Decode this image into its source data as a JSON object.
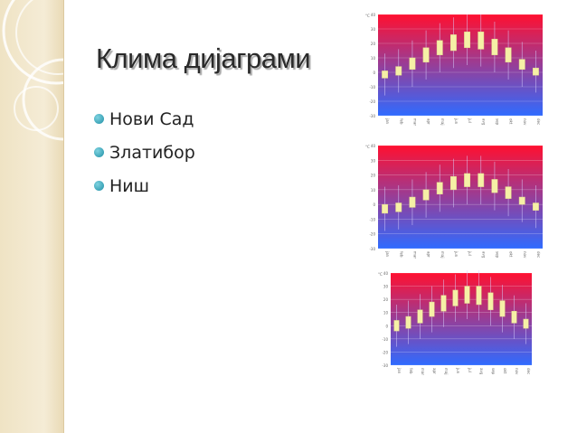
{
  "slide": {
    "title": "Клима дијаграми",
    "bullets": [
      {
        "label": "Нови Сад"
      },
      {
        "label": "Златибор"
      },
      {
        "label": "Ниш"
      }
    ]
  },
  "colors": {
    "sidebar": "#efe3c4",
    "chart_top": "#ff1030",
    "chart_bottom": "#2f6bff",
    "bar_fill": "#f6f0a6",
    "bullet": "#2a98ac"
  },
  "chart_data": [
    {
      "type": "bar",
      "title": "",
      "ylabel": "°C",
      "ylim": [
        -30,
        40
      ],
      "y_ticks": [
        "40",
        "30",
        "20",
        "10",
        "0",
        "-10",
        "-20",
        "-30"
      ],
      "categories": [
        "jan",
        "feb",
        "mar",
        "apr",
        "maj",
        "jun",
        "jul",
        "avg",
        "sep",
        "okt",
        "nov",
        "dec"
      ],
      "series": [
        {
          "low": [
            -4,
            -2,
            2,
            7,
            12,
            15,
            17,
            16,
            12,
            7,
            2,
            -2
          ]
        },
        {
          "high": [
            1,
            4,
            10,
            17,
            22,
            26,
            28,
            28,
            23,
            17,
            9,
            3
          ]
        }
      ]
    },
    {
      "type": "bar",
      "title": "",
      "ylabel": "°C",
      "ylim": [
        -30,
        40
      ],
      "y_ticks": [
        "40",
        "30",
        "20",
        "10",
        "0",
        "-10",
        "-20",
        "-30"
      ],
      "categories": [
        "jan",
        "feb",
        "mar",
        "apr",
        "maj",
        "jun",
        "jul",
        "avg",
        "sep",
        "okt",
        "nov",
        "dec"
      ],
      "series": [
        {
          "low": [
            -6,
            -5,
            -2,
            3,
            7,
            10,
            12,
            12,
            8,
            4,
            0,
            -4
          ]
        },
        {
          "high": [
            0,
            1,
            5,
            10,
            15,
            19,
            21,
            21,
            17,
            12,
            5,
            1
          ]
        }
      ]
    },
    {
      "type": "bar",
      "title": "",
      "ylabel": "°C",
      "ylim": [
        -30,
        40
      ],
      "y_ticks": [
        "40",
        "30",
        "20",
        "10",
        "0",
        "-10",
        "-20",
        "-30"
      ],
      "categories": [
        "jan",
        "feb",
        "mar",
        "apr",
        "maj",
        "jun",
        "jul",
        "avg",
        "sep",
        "okt",
        "nov",
        "dec"
      ],
      "series": [
        {
          "low": [
            -4,
            -2,
            2,
            7,
            11,
            15,
            17,
            16,
            12,
            7,
            2,
            -2
          ]
        },
        {
          "high": [
            4,
            7,
            12,
            18,
            23,
            27,
            30,
            30,
            25,
            19,
            11,
            5
          ]
        }
      ]
    }
  ]
}
